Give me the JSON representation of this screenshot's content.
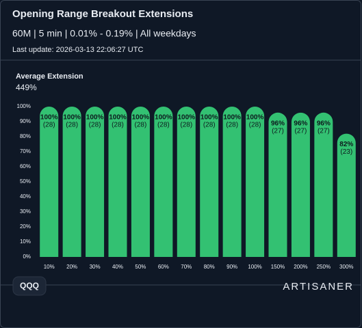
{
  "header": {
    "title": "Opening Range Breakout Extensions",
    "subtitle": "60M | 5 min | 0.01% - 0.19% | All weekdays",
    "last_update": "Last update: 2026-03-13 22:06:27 UTC"
  },
  "summary": {
    "label": "Average Extension",
    "value": "449%"
  },
  "chart_data": {
    "type": "bar",
    "categories": [
      "10%",
      "20%",
      "30%",
      "40%",
      "50%",
      "60%",
      "70%",
      "80%",
      "90%",
      "100%",
      "150%",
      "200%",
      "250%",
      "300%"
    ],
    "values": [
      100,
      100,
      100,
      100,
      100,
      100,
      100,
      100,
      100,
      100,
      96,
      96,
      96,
      82
    ],
    "value_labels": [
      "100%",
      "100%",
      "100%",
      "100%",
      "100%",
      "100%",
      "100%",
      "100%",
      "100%",
      "100%",
      "96%",
      "96%",
      "96%",
      "82%"
    ],
    "count_labels": [
      "(28)",
      "(28)",
      "(28)",
      "(28)",
      "(28)",
      "(28)",
      "(28)",
      "(28)",
      "(28)",
      "(28)",
      "(27)",
      "(27)",
      "(27)",
      "(23)"
    ],
    "color": "#33c172",
    "ylim": [
      0,
      100
    ],
    "yticks": [
      {
        "value": 0,
        "label": "0%"
      },
      {
        "value": 10,
        "label": "10%"
      },
      {
        "value": 20,
        "label": "20%"
      },
      {
        "value": 30,
        "label": "30%"
      },
      {
        "value": 40,
        "label": "40%"
      },
      {
        "value": 50,
        "label": "50%"
      },
      {
        "value": 60,
        "label": "60%"
      },
      {
        "value": 70,
        "label": "70%"
      },
      {
        "value": 80,
        "label": "80%"
      },
      {
        "value": 90,
        "label": "90%"
      },
      {
        "value": 100,
        "label": "100%"
      }
    ]
  },
  "footer": {
    "ticker": "QQQ",
    "brand": "ARTISANER"
  }
}
